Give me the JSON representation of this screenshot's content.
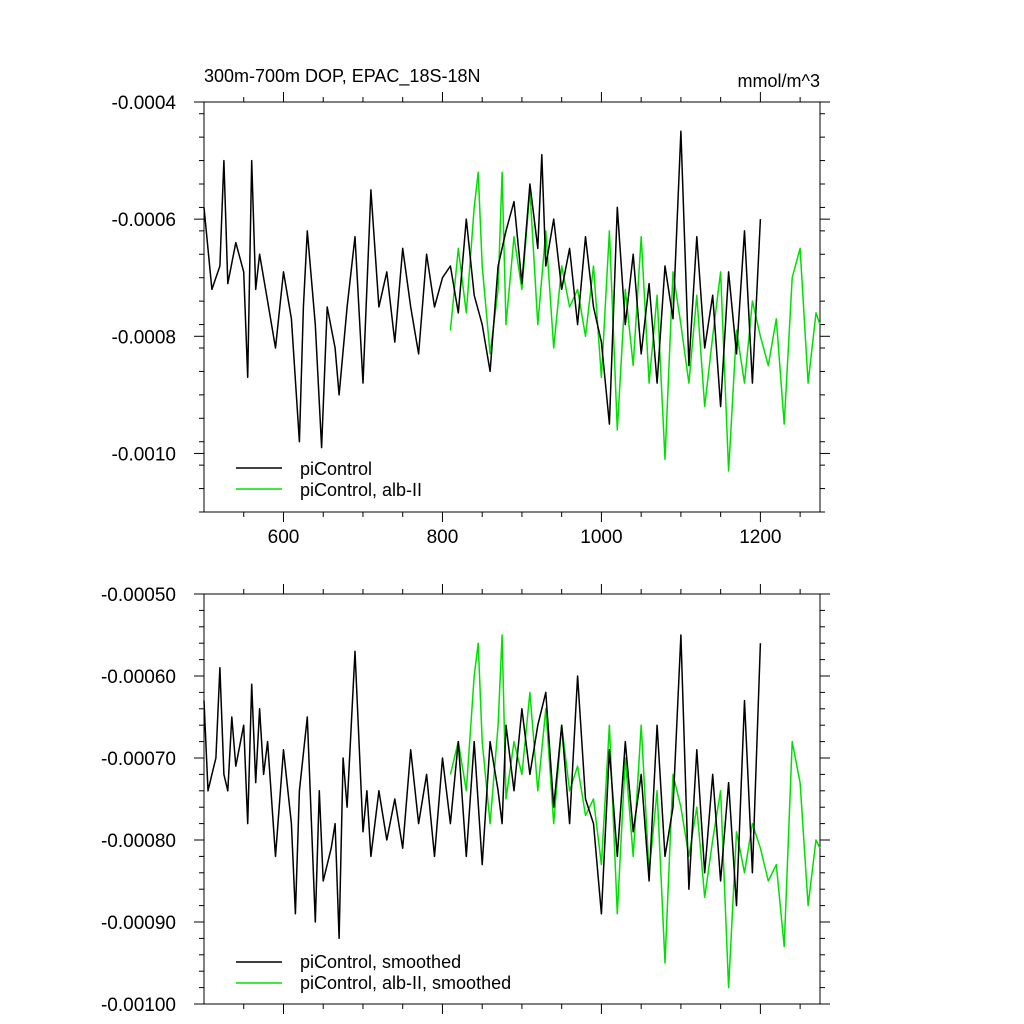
{
  "chart_data": [
    {
      "type": "line",
      "title": "300m-700m DOP, EPAC_18S-18N",
      "units": "mmol/m^3",
      "xlim": [
        500,
        1275
      ],
      "ylim": [
        -0.0011,
        -0.0004
      ],
      "x_ticks": [
        600,
        800,
        1000,
        1200
      ],
      "x_tick_labels": [
        "600",
        "800",
        "1000",
        "1200"
      ],
      "y_ticks": [
        -0.0004,
        -0.0006,
        -0.0008,
        -0.001
      ],
      "y_tick_labels": [
        "-0.0004",
        "-0.0006",
        "-0.0008",
        "-0.0010"
      ],
      "legend_position": "bottom-left",
      "series": [
        {
          "name": "piControl",
          "color": "#000000",
          "x": [
            500,
            510,
            520,
            525,
            530,
            540,
            550,
            555,
            560,
            565,
            570,
            580,
            590,
            600,
            610,
            620,
            625,
            630,
            640,
            648,
            655,
            665,
            670,
            680,
            690,
            700,
            710,
            720,
            730,
            740,
            750,
            760,
            770,
            780,
            790,
            800,
            810,
            820,
            830,
            840,
            850,
            860,
            870,
            880,
            890,
            900,
            910,
            920,
            925,
            930,
            940,
            950,
            960,
            970,
            980,
            990,
            1000,
            1010,
            1020,
            1030,
            1040,
            1050,
            1060,
            1070,
            1080,
            1090,
            1100,
            1110,
            1120,
            1130,
            1140,
            1150,
            1160,
            1170,
            1180,
            1190,
            1200
          ],
          "values": [
            -0.00058,
            -0.00072,
            -0.00068,
            -0.0005,
            -0.00071,
            -0.00064,
            -0.00069,
            -0.00087,
            -0.0005,
            -0.00072,
            -0.00066,
            -0.00074,
            -0.00082,
            -0.00069,
            -0.00077,
            -0.00098,
            -0.00075,
            -0.00062,
            -0.00078,
            -0.00099,
            -0.00075,
            -0.00082,
            -0.0009,
            -0.00075,
            -0.00063,
            -0.00088,
            -0.00055,
            -0.00075,
            -0.00069,
            -0.00081,
            -0.00065,
            -0.00075,
            -0.00083,
            -0.00066,
            -0.00075,
            -0.0007,
            -0.00068,
            -0.00076,
            -0.0006,
            -0.00073,
            -0.00078,
            -0.00086,
            -0.00068,
            -0.00062,
            -0.00057,
            -0.00071,
            -0.00054,
            -0.00065,
            -0.00049,
            -0.00068,
            -0.0006,
            -0.00072,
            -0.00065,
            -0.00078,
            -0.00063,
            -0.00075,
            -0.00081,
            -0.00095,
            -0.00058,
            -0.00078,
            -0.00066,
            -0.00083,
            -0.00071,
            -0.00088,
            -0.00068,
            -0.00077,
            -0.00045,
            -0.00085,
            -0.00063,
            -0.00082,
            -0.00073,
            -0.00092,
            -0.00069,
            -0.00083,
            -0.00062,
            -0.00088,
            -0.0006
          ]
        },
        {
          "name": "piControl, alb-II",
          "color": "#00e000",
          "x": [
            810,
            820,
            830,
            840,
            845,
            850,
            860,
            870,
            875,
            880,
            890,
            900,
            910,
            920,
            930,
            940,
            950,
            960,
            970,
            980,
            990,
            1000,
            1010,
            1020,
            1030,
            1040,
            1050,
            1060,
            1070,
            1080,
            1090,
            1100,
            1110,
            1120,
            1130,
            1140,
            1150,
            1160,
            1170,
            1180,
            1190,
            1200,
            1210,
            1220,
            1230,
            1240,
            1250,
            1260,
            1270,
            1275
          ],
          "values": [
            -0.00079,
            -0.00065,
            -0.00076,
            -0.00058,
            -0.00052,
            -0.00068,
            -0.00083,
            -0.00072,
            -0.00052,
            -0.00078,
            -0.00063,
            -0.00072,
            -0.00055,
            -0.00078,
            -0.00062,
            -0.00082,
            -0.00068,
            -0.00075,
            -0.00072,
            -0.0008,
            -0.00068,
            -0.00087,
            -0.00062,
            -0.00096,
            -0.00072,
            -0.00085,
            -0.00063,
            -0.00088,
            -0.00073,
            -0.00101,
            -0.00069,
            -0.00078,
            -0.00088,
            -0.00073,
            -0.00092,
            -0.0008,
            -0.00069,
            -0.00103,
            -0.00079,
            -0.00088,
            -0.00074,
            -0.0008,
            -0.00085,
            -0.00077,
            -0.00095,
            -0.0007,
            -0.00065,
            -0.00088,
            -0.00076,
            -0.00078
          ]
        }
      ]
    },
    {
      "type": "line",
      "title": "",
      "xlim": [
        500,
        1275
      ],
      "ylim": [
        -0.001,
        -0.0005
      ],
      "x_ticks": [
        600,
        800,
        1000,
        1200
      ],
      "y_ticks": [
        -0.0005,
        -0.0006,
        -0.0007,
        -0.0008,
        -0.0009,
        -0.001
      ],
      "y_tick_labels": [
        "-0.00050",
        "-0.00060",
        "-0.00070",
        "-0.00080",
        "-0.00090",
        "-0.00100"
      ],
      "legend_position": "bottom-left",
      "series": [
        {
          "name": "piControl, smoothed",
          "color": "#000000",
          "x": [
            500,
            505,
            510,
            515,
            520,
            525,
            530,
            535,
            540,
            550,
            555,
            560,
            565,
            570,
            575,
            580,
            590,
            600,
            610,
            615,
            620,
            630,
            640,
            645,
            650,
            660,
            665,
            670,
            675,
            680,
            690,
            700,
            705,
            710,
            720,
            730,
            740,
            750,
            760,
            770,
            780,
            790,
            800,
            810,
            820,
            830,
            840,
            850,
            860,
            870,
            875,
            880,
            890,
            900,
            910,
            920,
            930,
            940,
            950,
            960,
            970,
            980,
            990,
            1000,
            1010,
            1020,
            1030,
            1040,
            1050,
            1060,
            1070,
            1080,
            1090,
            1100,
            1110,
            1120,
            1130,
            1140,
            1150,
            1160,
            1170,
            1180,
            1190,
            1200
          ],
          "values": [
            -0.00063,
            -0.00074,
            -0.00072,
            -0.0007,
            -0.00059,
            -0.00072,
            -0.00074,
            -0.00065,
            -0.00071,
            -0.00066,
            -0.00078,
            -0.00061,
            -0.00073,
            -0.00064,
            -0.00072,
            -0.00068,
            -0.00082,
            -0.00069,
            -0.00078,
            -0.00089,
            -0.00074,
            -0.00065,
            -0.0009,
            -0.00074,
            -0.00085,
            -0.00081,
            -0.00078,
            -0.00092,
            -0.0007,
            -0.00076,
            -0.00057,
            -0.00079,
            -0.00074,
            -0.00082,
            -0.00074,
            -0.0008,
            -0.00075,
            -0.00081,
            -0.00069,
            -0.00078,
            -0.00072,
            -0.00082,
            -0.0007,
            -0.00078,
            -0.00068,
            -0.00082,
            -0.00068,
            -0.00083,
            -0.00068,
            -0.00074,
            -0.00078,
            -0.00066,
            -0.00074,
            -0.00064,
            -0.00072,
            -0.00066,
            -0.00062,
            -0.00076,
            -0.00066,
            -0.00078,
            -0.0006,
            -0.00075,
            -0.00078,
            -0.00089,
            -0.00069,
            -0.00082,
            -0.00068,
            -0.00079,
            -0.00072,
            -0.00085,
            -0.00066,
            -0.00082,
            -0.00076,
            -0.00055,
            -0.00086,
            -0.00069,
            -0.00084,
            -0.00072,
            -0.00085,
            -0.00073,
            -0.00088,
            -0.00063,
            -0.00084,
            -0.00056
          ]
        },
        {
          "name": "piControl, alb-II, smoothed",
          "color": "#00e000",
          "x": [
            810,
            820,
            830,
            840,
            845,
            850,
            860,
            870,
            875,
            880,
            890,
            900,
            910,
            920,
            930,
            940,
            950,
            960,
            970,
            980,
            990,
            1000,
            1010,
            1020,
            1030,
            1040,
            1050,
            1060,
            1070,
            1080,
            1090,
            1100,
            1110,
            1120,
            1130,
            1140,
            1150,
            1160,
            1170,
            1180,
            1190,
            1200,
            1210,
            1220,
            1230,
            1240,
            1250,
            1260,
            1270,
            1275
          ],
          "values": [
            -0.00072,
            -0.00068,
            -0.00074,
            -0.0006,
            -0.00056,
            -0.00068,
            -0.00078,
            -0.00066,
            -0.00055,
            -0.00075,
            -0.00068,
            -0.00072,
            -0.00062,
            -0.00074,
            -0.00064,
            -0.00078,
            -0.00066,
            -0.00074,
            -0.00071,
            -0.00077,
            -0.00075,
            -0.00083,
            -0.00066,
            -0.00089,
            -0.0007,
            -0.00082,
            -0.00066,
            -0.00084,
            -0.00074,
            -0.00095,
            -0.00072,
            -0.00076,
            -0.00082,
            -0.00076,
            -0.00087,
            -0.0008,
            -0.00074,
            -0.00098,
            -0.00079,
            -0.00084,
            -0.00078,
            -0.00081,
            -0.00085,
            -0.00083,
            -0.00093,
            -0.00068,
            -0.00073,
            -0.00088,
            -0.0008,
            -0.00081
          ]
        }
      ]
    }
  ]
}
